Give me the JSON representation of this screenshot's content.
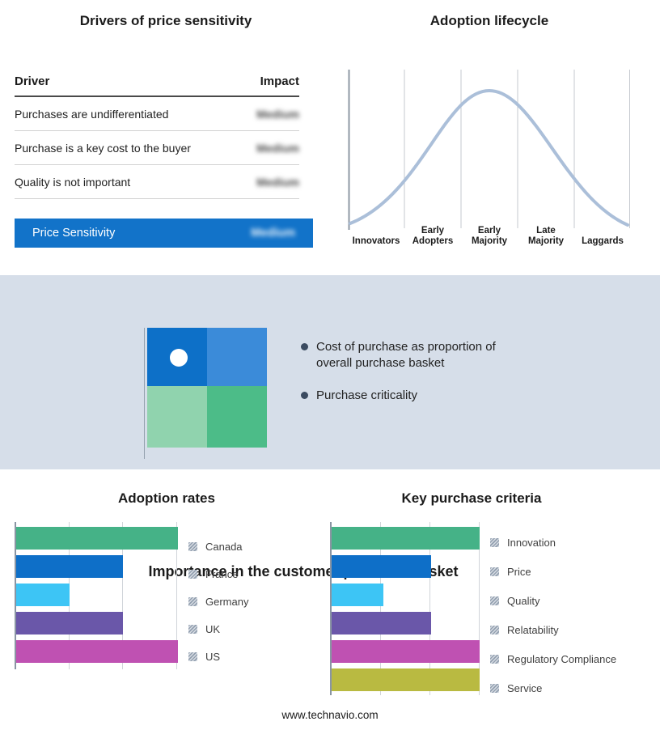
{
  "colors": {
    "accent_blue": "#1273c9",
    "band_bg": "#d6dee9",
    "curve": "#abbfd9",
    "bar_green": "#45b287",
    "bar_blue": "#0e6fc8",
    "bar_cyan": "#3dc5f5",
    "bar_purple": "#6a57a9",
    "bar_magenta": "#bf51b2",
    "bar_olive": "#b9ba41",
    "quad_tl": "#0d70c8",
    "quad_tr": "#3b8bd9",
    "quad_bl": "#90d3ae",
    "quad_br": "#4cbc88"
  },
  "drivers": {
    "title": "Drivers of price sensitivity",
    "columns": {
      "driver": "Driver",
      "impact": "Impact"
    },
    "rows": [
      {
        "driver": "Purchases are undifferentiated",
        "impact": "Medium"
      },
      {
        "driver": "Purchase is a key cost to the buyer",
        "impact": "Medium"
      },
      {
        "driver": "Quality is not important",
        "impact": "Medium"
      }
    ],
    "summary": {
      "label": "Price Sensitivity",
      "impact": "Medium"
    }
  },
  "lifecycle": {
    "title": "Adoption lifecycle",
    "stages": [
      "Innovators",
      "Early Adopters",
      "Early Majority",
      "Late Majority",
      "Laggards"
    ]
  },
  "basket": {
    "title": "Importance in the customer purchase basket",
    "bullets": [
      "Cost of purchase as proportion of overall purchase basket",
      "Purchase criticality"
    ]
  },
  "adoption": {
    "title": "Adoption rates",
    "legend": [
      "Canada",
      "France",
      "Germany",
      "UK",
      "US"
    ]
  },
  "criteria": {
    "title": "Key purchase criteria",
    "legend": [
      "Innovation",
      "Price",
      "Quality",
      "Relatability",
      "Regulatory Compliance",
      "Service"
    ]
  },
  "footer": "www.technavio.com",
  "chart_data": [
    {
      "type": "line",
      "title": "Adoption lifecycle",
      "x": [
        "Innovators",
        "Early Adopters",
        "Early Majority",
        "Late Majority",
        "Laggards"
      ],
      "values": [
        5,
        60,
        100,
        60,
        5
      ],
      "xlabel": "",
      "ylabel": "",
      "legend_position": "none",
      "grid": "vertical stage separators",
      "note": "bell-shaped adoption curve, relative heights (no numeric axis shown)"
    },
    {
      "type": "bar",
      "orientation": "horizontal",
      "title": "Adoption rates",
      "categories": [
        "Canada",
        "France",
        "Germany",
        "UK",
        "US"
      ],
      "values": [
        100,
        66,
        33,
        66,
        100
      ],
      "xlim": [
        0,
        100
      ],
      "legend_position": "right",
      "unit": "relative %, no numeric axis labels shown"
    },
    {
      "type": "bar",
      "orientation": "horizontal",
      "title": "Key purchase criteria",
      "categories": [
        "Innovation",
        "Price",
        "Quality",
        "Relatability",
        "Regulatory Compliance",
        "Service"
      ],
      "values": [
        100,
        67,
        35,
        67,
        100,
        100
      ],
      "xlim": [
        0,
        100
      ],
      "legend_position": "right",
      "unit": "relative %, no numeric axis labels shown"
    }
  ]
}
